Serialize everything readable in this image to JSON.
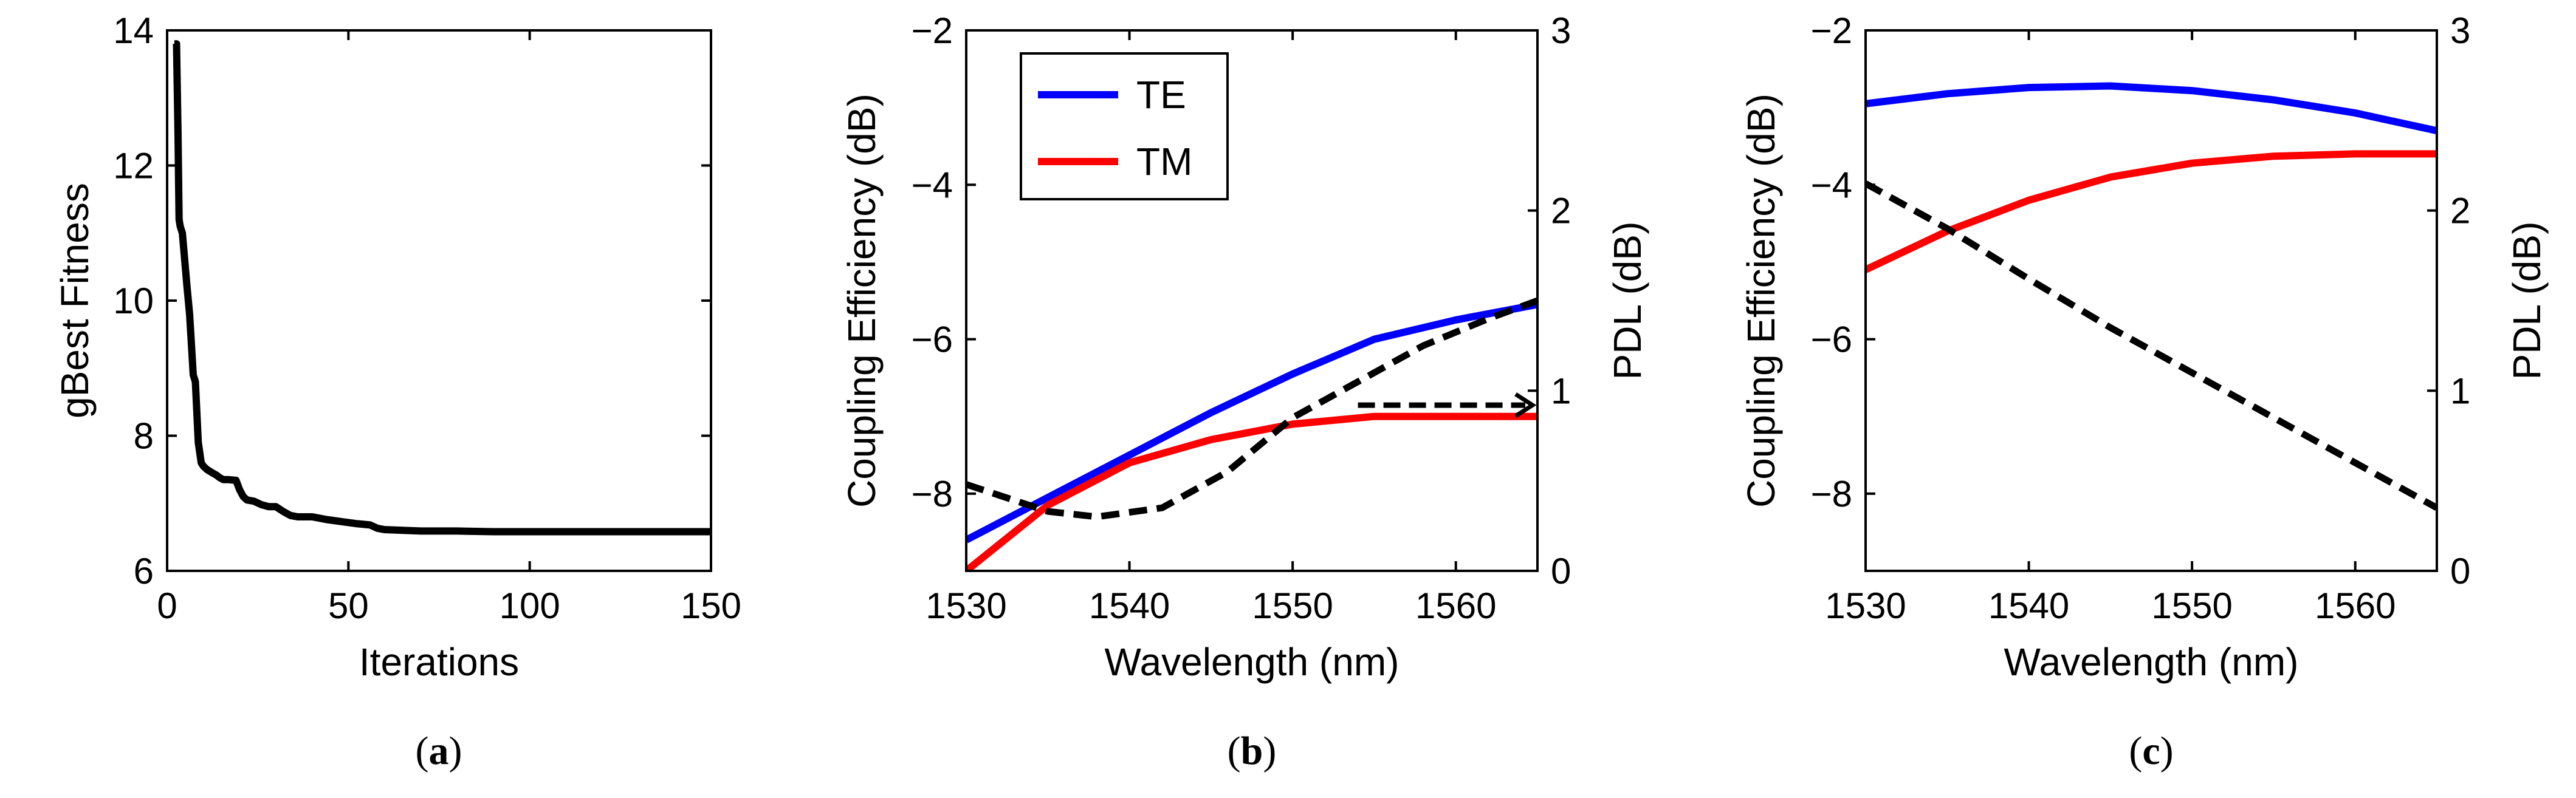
{
  "chart_data": [
    {
      "panel": "a",
      "panel_label": {
        "open": "(",
        "letter": "a",
        "close": ")"
      },
      "type": "line",
      "xlabel": "Iterations",
      "ylabel": "gBest Fitness",
      "xlim": [
        0,
        150
      ],
      "ylim": [
        6,
        14
      ],
      "xticks": [
        "0",
        "50",
        "100",
        "150"
      ],
      "yticks": [
        "6",
        "8",
        "10",
        "12",
        "14"
      ],
      "series": [
        {
          "name": "gBest",
          "color": "#000000",
          "dash": false,
          "axis": "left",
          "x": [
            2,
            2.6,
            3,
            3.3,
            3.6,
            4.2,
            5.5,
            6.2,
            7.2,
            7.8,
            8.6,
            9.4,
            10,
            11,
            12.5,
            13.5,
            14.5,
            15.5,
            17,
            19,
            20,
            21,
            22,
            24,
            26,
            28,
            30,
            32,
            34,
            36,
            40,
            44,
            48,
            52,
            56,
            58,
            60,
            65,
            70,
            80,
            90,
            100,
            120,
            150
          ],
          "y": [
            13.8,
            13.8,
            12.5,
            11.2,
            11.1,
            11.0,
            10.2,
            9.8,
            8.9,
            8.8,
            7.9,
            7.6,
            7.55,
            7.5,
            7.45,
            7.42,
            7.38,
            7.35,
            7.35,
            7.34,
            7.2,
            7.1,
            7.05,
            7.03,
            6.98,
            6.95,
            6.95,
            6.88,
            6.82,
            6.8,
            6.8,
            6.76,
            6.73,
            6.7,
            6.68,
            6.63,
            6.61,
            6.6,
            6.59,
            6.59,
            6.58,
            6.58,
            6.58,
            6.58
          ]
        }
      ]
    },
    {
      "panel": "b",
      "panel_label": {
        "open": "(",
        "letter": "b",
        "close": ")"
      },
      "type": "line",
      "xlabel": "Wavelength (nm)",
      "ylabel": "Coupling Efficiency (dB)",
      "ylabel_right": "PDL (dB)",
      "xlim": [
        1530,
        1565
      ],
      "ylim": [
        -9,
        -2
      ],
      "ylim_right": [
        0,
        3
      ],
      "xticks": [
        "1530",
        "1540",
        "1550",
        "1560"
      ],
      "yticks": [
        "−8",
        "−6",
        "−4",
        "−2"
      ],
      "yticks_right": [
        "0",
        "1",
        "2",
        "3"
      ],
      "legend": {
        "position": "top-left",
        "entries": [
          "TE",
          "TM"
        ]
      },
      "series": [
        {
          "name": "TE",
          "color": "#0000ff",
          "dash": false,
          "axis": "left",
          "x": [
            1530,
            1535,
            1540,
            1545,
            1550,
            1555,
            1560,
            1565
          ],
          "y": [
            -8.6,
            -8.05,
            -7.5,
            -6.95,
            -6.45,
            -6.0,
            -5.75,
            -5.55
          ]
        },
        {
          "name": "TM",
          "color": "#ff0000",
          "dash": false,
          "axis": "left",
          "x": [
            1530,
            1535,
            1540,
            1545,
            1550,
            1555,
            1560,
            1565
          ],
          "y": [
            -9.0,
            -8.15,
            -7.6,
            -7.3,
            -7.1,
            -7.0,
            -7.0,
            -7.0
          ]
        },
        {
          "name": "PDL",
          "color": "#000000",
          "dash": true,
          "axis": "right",
          "x": [
            1530,
            1535,
            1538,
            1542,
            1546,
            1550,
            1554,
            1558,
            1562,
            1565
          ],
          "y": [
            0.48,
            0.33,
            0.3,
            0.35,
            0.55,
            0.85,
            1.05,
            1.25,
            1.4,
            1.5
          ]
        }
      ],
      "annotation": {
        "type": "arrow",
        "from": [
          1554,
          0.92
        ],
        "to": [
          1565,
          0.92
        ],
        "axis": "right"
      }
    },
    {
      "panel": "c",
      "panel_label": {
        "open": "(",
        "letter": "c",
        "close": ")"
      },
      "type": "line",
      "xlabel": "Wavelength (nm)",
      "ylabel": "Coupling Efficiency (dB)",
      "ylabel_right": "PDL (dB)",
      "xlim": [
        1530,
        1565
      ],
      "ylim": [
        -9,
        -2
      ],
      "ylim_right": [
        0,
        3
      ],
      "xticks": [
        "1530",
        "1540",
        "1550",
        "1560"
      ],
      "yticks": [
        "−8",
        "−6",
        "−4",
        "−2"
      ],
      "yticks_right": [
        "0",
        "1",
        "2",
        "3"
      ],
      "series": [
        {
          "name": "TE",
          "color": "#0000ff",
          "dash": false,
          "axis": "left",
          "x": [
            1530,
            1535,
            1540,
            1545,
            1550,
            1555,
            1560,
            1565
          ],
          "y": [
            -2.95,
            -2.82,
            -2.74,
            -2.72,
            -2.78,
            -2.9,
            -3.07,
            -3.3
          ]
        },
        {
          "name": "TM",
          "color": "#ff0000",
          "dash": false,
          "axis": "left",
          "x": [
            1530,
            1535,
            1540,
            1545,
            1550,
            1555,
            1560,
            1565
          ],
          "y": [
            -5.1,
            -4.6,
            -4.2,
            -3.9,
            -3.72,
            -3.63,
            -3.6,
            -3.6
          ]
        },
        {
          "name": "PDL",
          "color": "#000000",
          "dash": true,
          "axis": "right",
          "x": [
            1530,
            1535,
            1540,
            1545,
            1550,
            1555,
            1560,
            1565
          ],
          "y": [
            2.15,
            1.9,
            1.62,
            1.35,
            1.1,
            0.85,
            0.6,
            0.35
          ]
        }
      ]
    }
  ]
}
